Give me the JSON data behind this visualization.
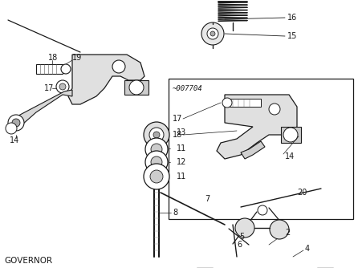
{
  "bg_color": "#ffffff",
  "line_color": "#1a1a1a",
  "caption": "GOVERNOR",
  "watermark_text": "~007704",
  "fig_width": 4.46,
  "fig_height": 3.34,
  "dpi": 100
}
